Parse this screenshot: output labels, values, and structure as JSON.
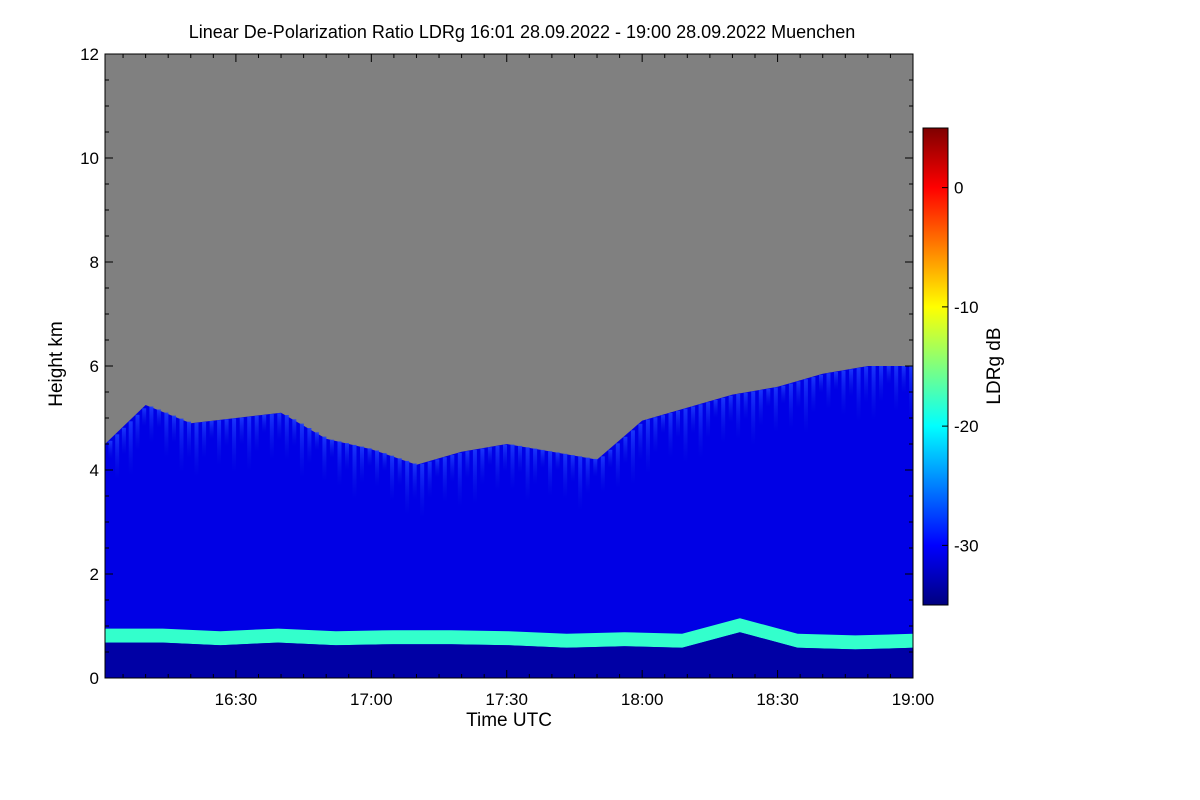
{
  "chart_data": {
    "type": "heatmap",
    "title": "Linear De-Polarization Ratio LDRg   16:01 28.09.2022 - 19:00 28.09.2022 Muenchen",
    "xlabel": "Time UTC",
    "ylabel": "Height km",
    "xlim": [
      "16:01",
      "19:00"
    ],
    "ylim": [
      0,
      12
    ],
    "x_ticks": [
      "16:30",
      "17:00",
      "17:30",
      "18:00",
      "18:30",
      "19:00"
    ],
    "x_tick_minutes": [
      990,
      1020,
      1050,
      1080,
      1110,
      1140
    ],
    "y_ticks": [
      0,
      2,
      4,
      6,
      8,
      10,
      12
    ],
    "colorbar": {
      "label": "LDRg dB",
      "range": [
        -35,
        5
      ],
      "ticks": [
        0,
        -10,
        -20,
        -30
      ],
      "colormap": [
        "#00007f",
        "#0000ff",
        "#007fff",
        "#00ffff",
        "#7fff7f",
        "#ffff00",
        "#ff7f00",
        "#ff0000",
        "#7f0000"
      ]
    },
    "no_signal_color": "#808080",
    "background_ldr_db": -31,
    "boundary_layer": {
      "top_km": [
        0.95,
        0.95,
        0.9,
        0.95,
        0.9,
        0.92,
        0.92,
        0.9,
        0.85,
        0.88,
        0.85,
        1.15,
        0.85,
        0.82,
        0.85
      ],
      "ldr_db": -18
    },
    "signal_top_km": [
      {
        "time": "16:01",
        "km": 4.5
      },
      {
        "time": "16:10",
        "km": 5.25
      },
      {
        "time": "16:20",
        "km": 4.9
      },
      {
        "time": "16:30",
        "km": 5.0
      },
      {
        "time": "16:40",
        "km": 5.1
      },
      {
        "time": "16:50",
        "km": 4.6
      },
      {
        "time": "17:00",
        "km": 4.4
      },
      {
        "time": "17:10",
        "km": 4.1
      },
      {
        "time": "17:20",
        "km": 4.35
      },
      {
        "time": "17:30",
        "km": 4.5
      },
      {
        "time": "17:40",
        "km": 4.35
      },
      {
        "time": "17:50",
        "km": 4.2
      },
      {
        "time": "18:00",
        "km": 4.95
      },
      {
        "time": "18:10",
        "km": 5.2
      },
      {
        "time": "18:20",
        "km": 5.45
      },
      {
        "time": "18:30",
        "km": 5.6
      },
      {
        "time": "18:40",
        "km": 5.85
      },
      {
        "time": "18:50",
        "km": 6.0
      },
      {
        "time": "19:00",
        "km": 6.0
      }
    ]
  }
}
